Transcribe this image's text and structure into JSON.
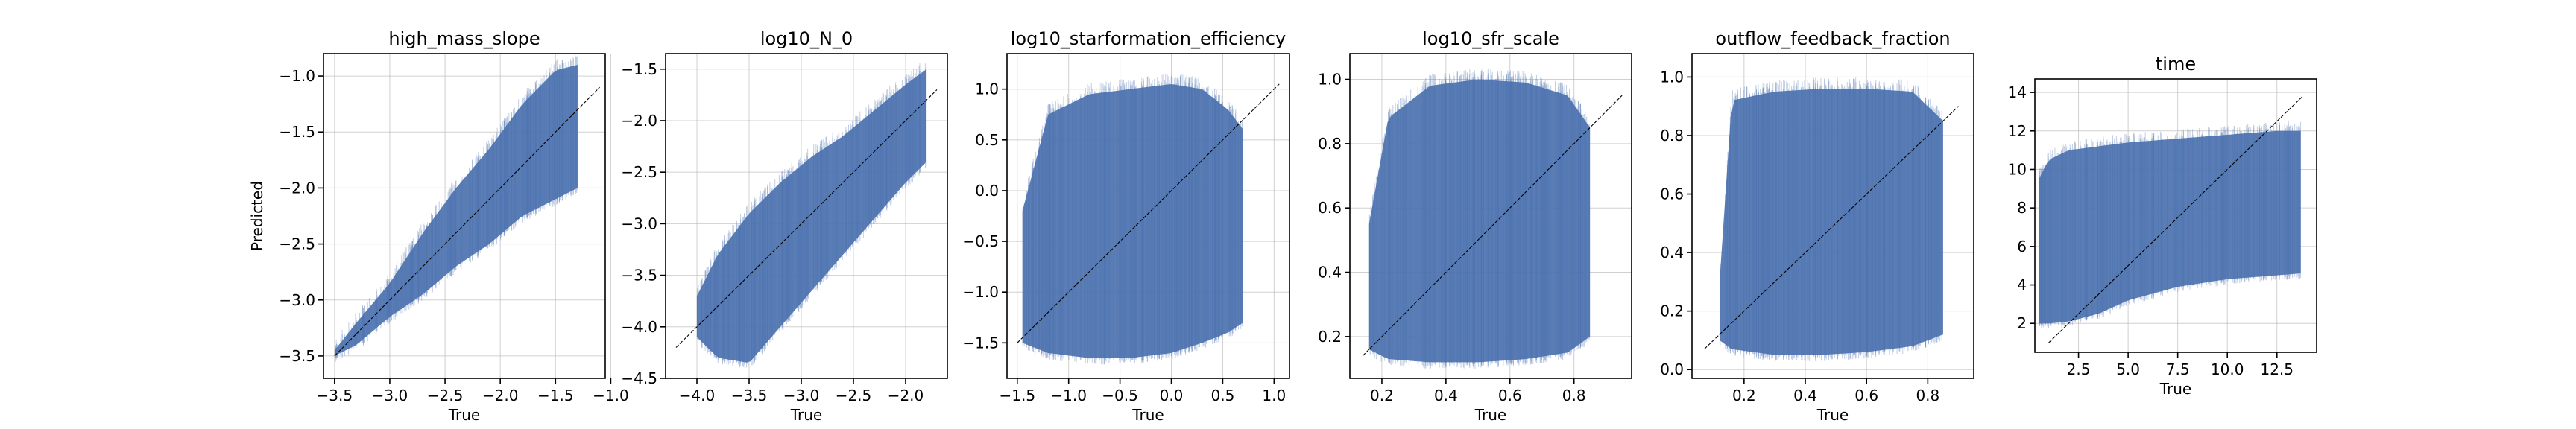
{
  "chart_data": [
    {
      "type": "scatter",
      "title": "high_mass_slope",
      "xlabel": "True",
      "ylabel": "Predicted",
      "xlim": [
        -3.6,
        -1.05
      ],
      "ylim": [
        -3.7,
        -0.8
      ],
      "xticks": [
        -3.5,
        -3.0,
        -2.5,
        -2.0,
        -1.5,
        -1.0
      ],
      "xtick_labels": [
        "−3.5",
        "−3.0",
        "−2.5",
        "−2.0",
        "−1.5",
        "−1.0"
      ],
      "yticks": [
        -3.5,
        -3.0,
        -2.5,
        -2.0,
        -1.5,
        -1.0
      ],
      "ytick_labels": [
        "−3.5",
        "−3.0",
        "−2.5",
        "−2.0",
        "−1.5",
        "−1.0"
      ],
      "grid": true,
      "identity_line": [
        [
          -3.5,
          -3.5
        ],
        [
          -1.1,
          -1.1
        ]
      ],
      "band": {
        "x": [
          -3.5,
          -3.3,
          -3.0,
          -2.7,
          -2.4,
          -2.1,
          -1.8,
          -1.5,
          -1.3
        ],
        "upper": [
          -3.45,
          -3.2,
          -2.85,
          -2.4,
          -2.0,
          -1.65,
          -1.25,
          -0.95,
          -0.9
        ],
        "lower": [
          -3.5,
          -3.4,
          -3.15,
          -2.95,
          -2.7,
          -2.5,
          -2.25,
          -2.1,
          -2.0
        ]
      },
      "series_color": "#4c72b0"
    },
    {
      "type": "scatter",
      "title": "log10_N_0",
      "xlabel": "True",
      "ylabel": "",
      "xlim": [
        -4.3,
        -1.6
      ],
      "ylim": [
        -4.5,
        -1.35
      ],
      "xticks": [
        -4.0,
        -3.5,
        -3.0,
        -2.5,
        -2.0
      ],
      "xtick_labels": [
        "−4.0",
        "−3.5",
        "−3.0",
        "−2.5",
        "−2.0"
      ],
      "yticks": [
        -4.5,
        -4.0,
        -3.5,
        -3.0,
        -2.5,
        -2.0,
        -1.5
      ],
      "ytick_labels": [
        "−4.5",
        "−4.0",
        "−3.5",
        "−3.0",
        "−2.5",
        "−2.0",
        "−1.5"
      ],
      "grid": true,
      "identity_line": [
        [
          -4.2,
          -4.2
        ],
        [
          -1.7,
          -1.7
        ]
      ],
      "band": {
        "x": [
          -4.0,
          -3.8,
          -3.5,
          -3.2,
          -2.9,
          -2.6,
          -2.3,
          -2.0,
          -1.8
        ],
        "upper": [
          -3.7,
          -3.3,
          -2.9,
          -2.6,
          -2.35,
          -2.15,
          -1.9,
          -1.65,
          -1.5
        ],
        "lower": [
          -4.1,
          -4.3,
          -4.35,
          -4.0,
          -3.65,
          -3.3,
          -2.95,
          -2.6,
          -2.4
        ]
      },
      "series_color": "#4c72b0"
    },
    {
      "type": "scatter",
      "title": "log10_starformation_efficiency",
      "xlabel": "True",
      "ylabel": "",
      "xlim": [
        -1.6,
        1.15
      ],
      "ylim": [
        -1.85,
        1.35
      ],
      "xticks": [
        -1.5,
        -1.0,
        -0.5,
        0.0,
        0.5,
        1.0
      ],
      "xtick_labels": [
        "−1.5",
        "−1.0",
        "−0.5",
        "0.0",
        "0.5",
        "1.0"
      ],
      "yticks": [
        -1.5,
        -1.0,
        -0.5,
        0.0,
        0.5,
        1.0
      ],
      "ytick_labels": [
        "−1.5",
        "−1.0",
        "−0.5",
        "0.0",
        "0.5",
        "1.0"
      ],
      "grid": true,
      "identity_line": [
        [
          -1.5,
          -1.5
        ],
        [
          1.05,
          1.05
        ]
      ],
      "band": {
        "x": [
          -1.45,
          -1.2,
          -0.8,
          -0.4,
          0.0,
          0.3,
          0.55,
          0.7
        ],
        "upper": [
          -0.2,
          0.75,
          0.95,
          1.0,
          1.05,
          1.0,
          0.8,
          0.6
        ],
        "lower": [
          -1.5,
          -1.6,
          -1.65,
          -1.65,
          -1.6,
          -1.5,
          -1.4,
          -1.3
        ]
      },
      "series_color": "#4c72b0"
    },
    {
      "type": "scatter",
      "title": "log10_sfr_scale",
      "xlabel": "True",
      "ylabel": "",
      "xlim": [
        0.1,
        0.98
      ],
      "ylim": [
        0.07,
        1.08
      ],
      "xticks": [
        0.2,
        0.4,
        0.6,
        0.8
      ],
      "xtick_labels": [
        "0.2",
        "0.4",
        "0.6",
        "0.8"
      ],
      "yticks": [
        0.2,
        0.4,
        0.6,
        0.8,
        1.0
      ],
      "ytick_labels": [
        "0.2",
        "0.4",
        "0.6",
        "0.8",
        "1.0"
      ],
      "grid": true,
      "identity_line": [
        [
          0.14,
          0.14
        ],
        [
          0.95,
          0.95
        ]
      ],
      "band": {
        "x": [
          0.16,
          0.22,
          0.35,
          0.5,
          0.65,
          0.78,
          0.85
        ],
        "upper": [
          0.55,
          0.88,
          0.98,
          1.0,
          0.99,
          0.95,
          0.85
        ],
        "lower": [
          0.16,
          0.13,
          0.12,
          0.12,
          0.13,
          0.15,
          0.2
        ]
      },
      "series_color": "#4c72b0"
    },
    {
      "type": "scatter",
      "title": "outflow_feedback_fraction",
      "xlabel": "True",
      "ylabel": "",
      "xlim": [
        0.03,
        0.95
      ],
      "ylim": [
        -0.03,
        1.08
      ],
      "xticks": [
        0.2,
        0.4,
        0.6,
        0.8
      ],
      "xtick_labels": [
        "0.2",
        "0.4",
        "0.6",
        "0.8"
      ],
      "yticks": [
        0.0,
        0.2,
        0.4,
        0.6,
        0.8,
        1.0
      ],
      "ytick_labels": [
        "0.0",
        "0.2",
        "0.4",
        "0.6",
        "0.8",
        "1.0"
      ],
      "grid": true,
      "identity_line": [
        [
          0.07,
          0.07
        ],
        [
          0.9,
          0.9
        ]
      ],
      "band": {
        "x": [
          0.12,
          0.16,
          0.3,
          0.45,
          0.6,
          0.75,
          0.85
        ],
        "upper": [
          0.3,
          0.92,
          0.95,
          0.96,
          0.96,
          0.95,
          0.85
        ],
        "lower": [
          0.1,
          0.07,
          0.05,
          0.05,
          0.06,
          0.08,
          0.12
        ]
      },
      "series_color": "#4c72b0"
    },
    {
      "type": "scatter",
      "title": "time",
      "xlabel": "True",
      "ylabel": "",
      "xlim": [
        0.3,
        14.5
      ],
      "ylim": [
        0.5,
        14.7
      ],
      "xticks": [
        2.5,
        5.0,
        7.5,
        10.0,
        12.5
      ],
      "xtick_labels": [
        "2.5",
        "5.0",
        "7.5",
        "10.0",
        "12.5"
      ],
      "yticks": [
        2,
        4,
        6,
        8,
        10,
        12,
        14
      ],
      "ytick_labels": [
        "2",
        "4",
        "6",
        "8",
        "10",
        "12",
        "14"
      ],
      "grid": true,
      "identity_line": [
        [
          1.0,
          1.0
        ],
        [
          13.8,
          13.8
        ]
      ],
      "band": {
        "x": [
          0.5,
          1.0,
          2.0,
          3.5,
          5.0,
          7.5,
          10.0,
          12.5,
          13.7
        ],
        "upper": [
          9.5,
          10.5,
          11.0,
          11.2,
          11.4,
          11.6,
          11.8,
          12.0,
          12.0
        ],
        "lower": [
          2.0,
          2.0,
          2.1,
          2.5,
          3.2,
          3.9,
          4.3,
          4.5,
          4.6
        ]
      },
      "series_color": "#4c72b0"
    }
  ]
}
